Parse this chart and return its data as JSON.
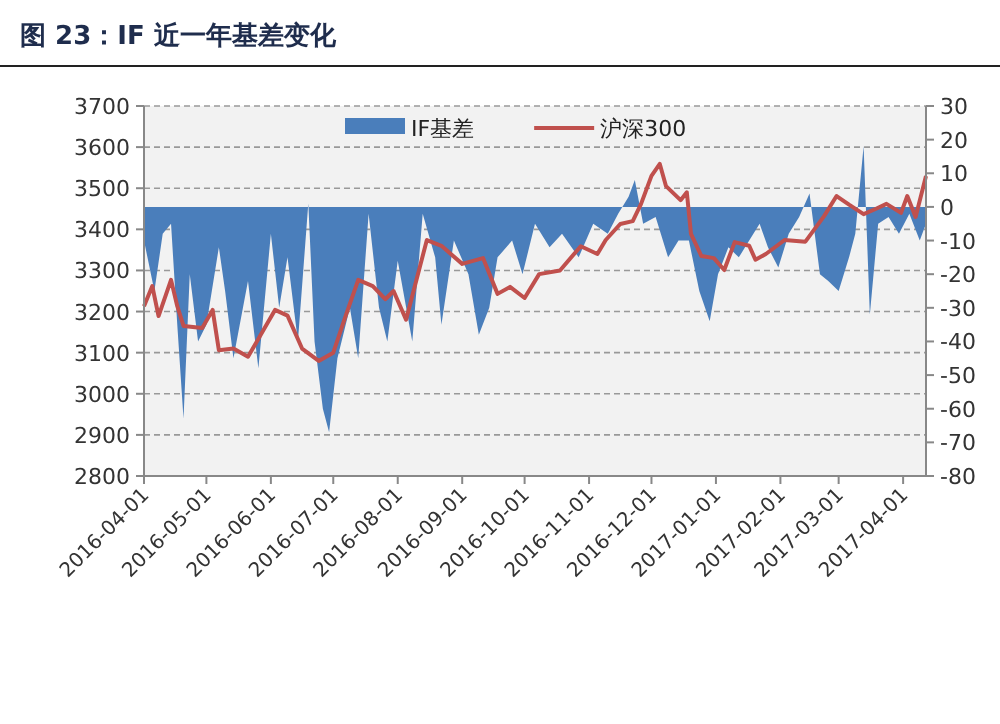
{
  "chart_data": {
    "type": "line",
    "title": "图 23：IF 近一年基差变化",
    "xlim": [
      "2016-04-01",
      "2017-04-12"
    ],
    "xticks": [
      "2016-04-01",
      "2016-05-01",
      "2016-06-01",
      "2016-07-01",
      "2016-08-01",
      "2016-09-01",
      "2016-10-01",
      "2016-11-01",
      "2016-12-01",
      "2017-01-01",
      "2017-02-01",
      "2017-03-01",
      "2017-04-01"
    ],
    "ylim": [
      2800,
      3700
    ],
    "yticks": [
      2800,
      2900,
      3000,
      3100,
      3200,
      3300,
      3400,
      3500,
      3600,
      3700
    ],
    "y2lim": [
      -80,
      30
    ],
    "y2ticks": [
      -80,
      -70,
      -60,
      -50,
      -40,
      -30,
      -20,
      -10,
      0,
      10,
      20,
      30
    ],
    "grid": "y",
    "legend": "top",
    "series": [
      {
        "name": "IF基差",
        "type": "area",
        "axis": "y2",
        "color": "#4a7ebb",
        "x": [
          "2016-04-01",
          "2016-04-06",
          "2016-04-10",
          "2016-04-14",
          "2016-04-17",
          "2016-04-20",
          "2016-04-23",
          "2016-04-27",
          "2016-05-01",
          "2016-05-07",
          "2016-05-10",
          "2016-05-14",
          "2016-05-21",
          "2016-05-26",
          "2016-06-01",
          "2016-06-05",
          "2016-06-09",
          "2016-06-14",
          "2016-06-19",
          "2016-06-22",
          "2016-06-26",
          "2016-06-29",
          "2016-07-03",
          "2016-07-09",
          "2016-07-13",
          "2016-07-18",
          "2016-07-23",
          "2016-07-27",
          "2016-08-01",
          "2016-08-08",
          "2016-08-13",
          "2016-08-19",
          "2016-08-22",
          "2016-08-28",
          "2016-09-04",
          "2016-09-09",
          "2016-09-14",
          "2016-09-18",
          "2016-09-25",
          "2016-09-30",
          "2016-10-06",
          "2016-10-13",
          "2016-10-19",
          "2016-10-27",
          "2016-11-03",
          "2016-11-10",
          "2016-11-15",
          "2016-11-20",
          "2016-11-23",
          "2016-11-27",
          "2016-12-03",
          "2016-12-09",
          "2016-12-14",
          "2016-12-19",
          "2016-12-24",
          "2016-12-29",
          "2017-01-02",
          "2017-01-07",
          "2017-01-12",
          "2017-01-17",
          "2017-01-22",
          "2017-01-26",
          "2017-01-31",
          "2017-02-05",
          "2017-02-10",
          "2017-02-15",
          "2017-02-20",
          "2017-02-24",
          "2017-03-01",
          "2017-03-06",
          "2017-03-09",
          "2017-03-13",
          "2017-03-16",
          "2017-03-20",
          "2017-03-25",
          "2017-03-30",
          "2017-04-04",
          "2017-04-09",
          "2017-04-12"
        ],
        "values": [
          -10,
          -25,
          -8,
          -5,
          -35,
          -63,
          -20,
          -40,
          -35,
          -12,
          -25,
          -45,
          -22,
          -48,
          -8,
          -30,
          -15,
          -40,
          1,
          -40,
          -60,
          -67,
          -45,
          -30,
          -45,
          -2,
          -30,
          -40,
          -16,
          -40,
          -2,
          -15,
          -35,
          -10,
          -20,
          -38,
          -30,
          -15,
          -10,
          -20,
          -5,
          -12,
          -8,
          -15,
          -5,
          -8,
          -2,
          3,
          8,
          -5,
          -3,
          -15,
          -10,
          -10,
          -25,
          -34,
          -20,
          -12,
          -15,
          -10,
          -5,
          -12,
          -18,
          -8,
          -3,
          4,
          -20,
          -22,
          -25,
          -15,
          -8,
          18,
          -32,
          -5,
          -3,
          -8,
          -2,
          -10,
          -5
        ]
      },
      {
        "name": "沪深300",
        "type": "line",
        "color": "#c0504d",
        "x": [
          "2016-04-01",
          "2016-04-05",
          "2016-04-08",
          "2016-04-14",
          "2016-04-17",
          "2016-04-20",
          "2016-04-29",
          "2016-05-04",
          "2016-05-07",
          "2016-05-14",
          "2016-05-21",
          "2016-05-29",
          "2016-06-03",
          "2016-06-09",
          "2016-06-16",
          "2016-06-24",
          "2016-07-01",
          "2016-07-07",
          "2016-07-13",
          "2016-07-20",
          "2016-07-26",
          "2016-07-30",
          "2016-08-05",
          "2016-08-15",
          "2016-08-22",
          "2016-09-01",
          "2016-09-11",
          "2016-09-18",
          "2016-09-24",
          "2016-10-01",
          "2016-10-08",
          "2016-10-18",
          "2016-10-28",
          "2016-11-05",
          "2016-11-09",
          "2016-11-16",
          "2016-11-22",
          "2016-11-26",
          "2016-12-01",
          "2016-12-05",
          "2016-12-08",
          "2016-12-15",
          "2016-12-18",
          "2016-12-20",
          "2016-12-25",
          "2016-12-31",
          "2017-01-05",
          "2017-01-10",
          "2017-01-17",
          "2017-01-20",
          "2017-01-25",
          "2017-02-03",
          "2017-02-13",
          "2017-02-22",
          "2017-02-28",
          "2017-03-06",
          "2017-03-13",
          "2017-03-19",
          "2017-03-24",
          "2017-03-31",
          "2017-04-03",
          "2017-04-07",
          "2017-04-12"
        ],
        "values": [
          3213,
          3262,
          3189,
          3277,
          3213,
          3165,
          3160,
          3204,
          3106,
          3110,
          3090,
          3160,
          3204,
          3190,
          3110,
          3080,
          3100,
          3190,
          3277,
          3262,
          3230,
          3250,
          3180,
          3374,
          3360,
          3316,
          3330,
          3243,
          3260,
          3233,
          3291,
          3300,
          3359,
          3340,
          3374,
          3413,
          3420,
          3462,
          3530,
          3559,
          3505,
          3471,
          3490,
          3389,
          3335,
          3330,
          3301,
          3369,
          3360,
          3326,
          3340,
          3374,
          3370,
          3432,
          3481,
          3460,
          3437,
          3450,
          3462,
          3440,
          3481,
          3430,
          3530
        ]
      }
    ]
  }
}
